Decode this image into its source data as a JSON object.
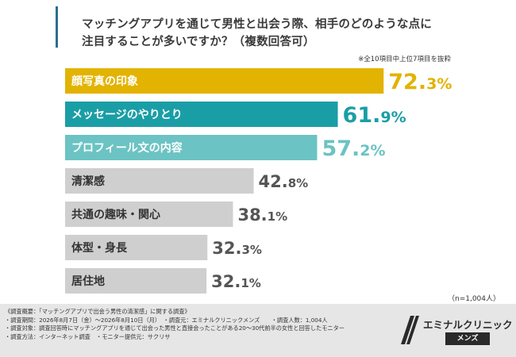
{
  "title": {
    "line1": "マッチングアプリを通じて男性と出会う際、相手のどのような点に",
    "line2": "注目することが多いですか？（複数回答可）"
  },
  "subnote": "※全10項目中上位7項目を抜粋",
  "chart_data": {
    "type": "bar",
    "orientation": "horizontal",
    "categories": [
      "顔写真の印象",
      "メッセージのやりとり",
      "プロフィール文の内容",
      "清潔感",
      "共通の趣味・関心",
      "体型・身長",
      "居住地"
    ],
    "values": [
      72.3,
      61.9,
      57.2,
      42.8,
      38.1,
      32.3,
      32.1
    ],
    "value_labels": [
      {
        "int": "72.",
        "dec": "3%"
      },
      {
        "int": "61.",
        "dec": "9%"
      },
      {
        "int": "57.",
        "dec": "2%"
      },
      {
        "int": "42.",
        "dec": "8%"
      },
      {
        "int": "38.",
        "dec": "1%"
      },
      {
        "int": "32.",
        "dec": "3%"
      },
      {
        "int": "32.",
        "dec": "1%"
      }
    ],
    "bar_colors": [
      "#e2b300",
      "#1a9ea6",
      "#6cc3c3",
      "#cfcfcf",
      "#cfcfcf",
      "#cfcfcf",
      "#cfcfcf"
    ],
    "label_colors": [
      "#ffffff",
      "#ffffff",
      "#ffffff",
      "#333333",
      "#333333",
      "#333333",
      "#333333"
    ],
    "value_colors": [
      "#e2b300",
      "#1a9ea6",
      "#6cc3c3",
      "#555555",
      "#555555",
      "#555555",
      "#555555"
    ],
    "xlim": [
      0,
      100
    ],
    "sample_note": "（n=1,004人）"
  },
  "footer": {
    "lines": [
      "《調査概要：「マッチングアプリで出会う男性の清潔感」に関する調査》",
      "・調査期間：2026年8月7日（金）〜2026年8月10日（月）　・調査元：エミナルクリニックメンズ　　・調査人数：1,004人",
      "・調査対象：調査回答時にマッチングアプリを通じて出会った男性と直接会ったことがある20〜30代前半の女性と回答したモニター",
      "・調査方法：インターネット調査　・モニター提供元：サクリサ"
    ]
  },
  "logo": {
    "name": "エミナルクリニック",
    "sub": "メンズ"
  }
}
